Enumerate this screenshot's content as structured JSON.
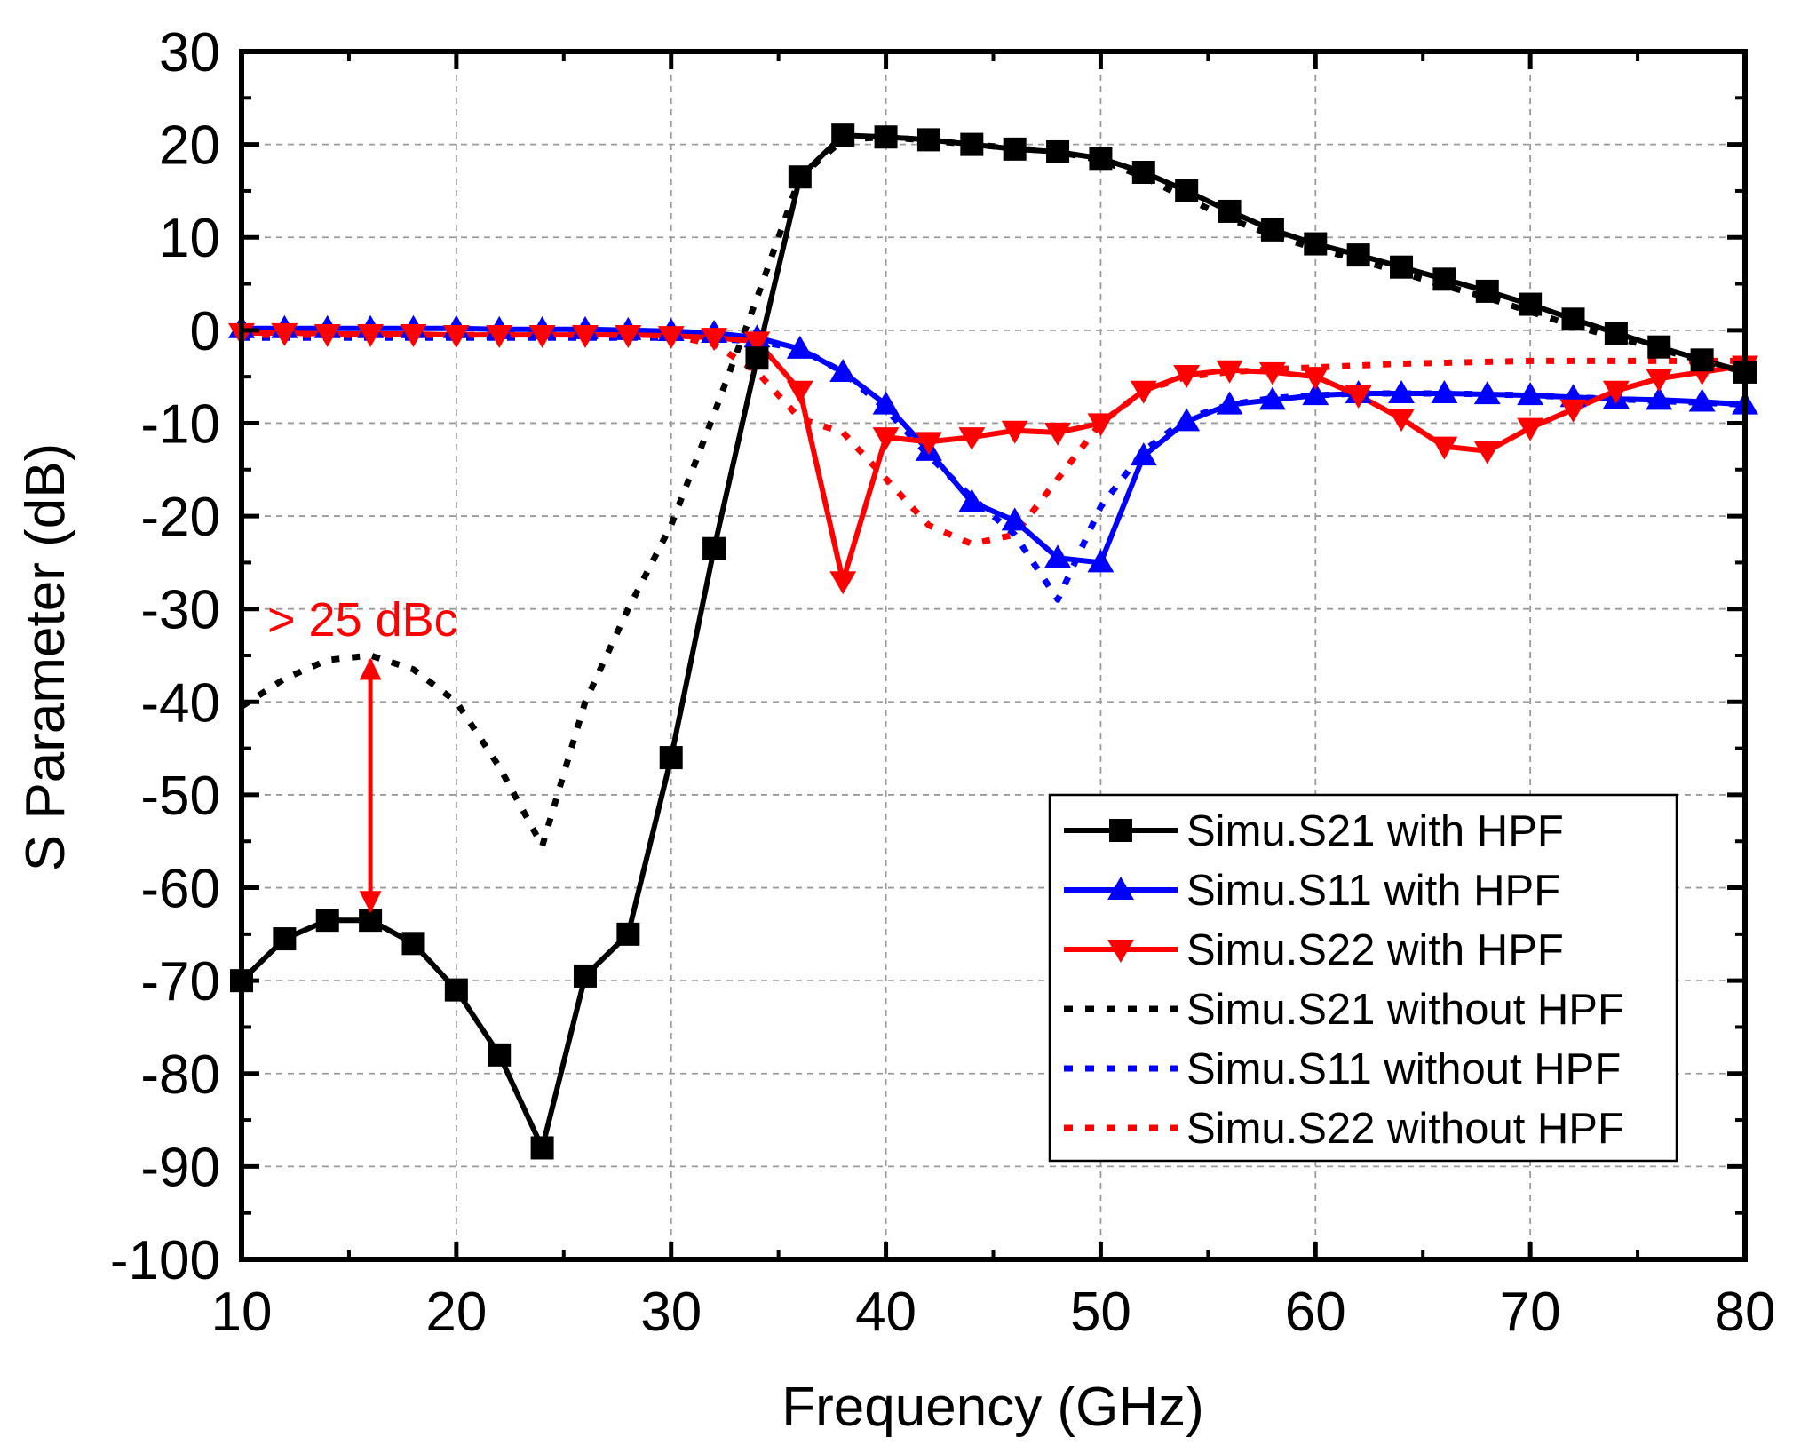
{
  "chart_data": {
    "type": "line",
    "title": "",
    "xlabel": "Frequency (GHz)",
    "ylabel": "S Parameter (dB)",
    "xlim": [
      10,
      80
    ],
    "ylim": [
      -100,
      30
    ],
    "xticks": [
      10,
      20,
      30,
      40,
      50,
      60,
      70,
      80
    ],
    "yticks": [
      30,
      20,
      10,
      0,
      -10,
      -20,
      -30,
      -40,
      -50,
      -60,
      -70,
      -80,
      -90,
      -100
    ],
    "grid": true,
    "legend_position": "bottom-right",
    "series": [
      {
        "name": "Simu.S21 with HPF",
        "color": "#000000",
        "style": "solid",
        "marker": "square",
        "x": [
          10,
          12,
          14,
          16,
          18,
          20,
          22,
          24,
          26,
          28,
          30,
          32,
          34,
          36,
          38,
          40,
          42,
          44,
          46,
          48,
          50,
          52,
          54,
          56,
          58,
          60,
          62,
          64,
          66,
          68,
          70,
          72,
          74,
          76,
          78,
          80
        ],
        "y": [
          -70,
          -65.5,
          -63.5,
          -63.5,
          -66,
          -71,
          -78,
          -88,
          -69.5,
          -65,
          -46,
          -23.5,
          -3,
          16.5,
          21,
          20.8,
          20.5,
          20,
          19.5,
          19.2,
          18.5,
          17,
          15,
          12.8,
          10.8,
          9.3,
          8.1,
          6.8,
          5.5,
          4.2,
          2.8,
          1.2,
          -0.3,
          -1.8,
          -3.2,
          -4.5
        ]
      },
      {
        "name": "Simu.S11 with HPF",
        "color": "#0000ff",
        "style": "solid",
        "marker": "triangle-up",
        "x": [
          10,
          12,
          14,
          16,
          18,
          20,
          22,
          24,
          26,
          28,
          30,
          32,
          34,
          36,
          38,
          40,
          42,
          44,
          46,
          48,
          50,
          52,
          54,
          56,
          58,
          60,
          62,
          64,
          66,
          68,
          70,
          72,
          74,
          76,
          78,
          80
        ],
        "y": [
          0.2,
          0.2,
          0.2,
          0.2,
          0.2,
          0.2,
          0.1,
          0.1,
          0.1,
          0,
          -0.1,
          -0.3,
          -0.8,
          -2,
          -4.5,
          -8,
          -13,
          -18.5,
          -20.5,
          -24.5,
          -25,
          -13.5,
          -9.8,
          -8,
          -7.5,
          -7,
          -6.8,
          -6.8,
          -6.8,
          -6.9,
          -7,
          -7.2,
          -7.4,
          -7.5,
          -7.7,
          -8
        ]
      },
      {
        "name": "Simu.S22 with HPF",
        "color": "#ff0000",
        "style": "solid",
        "marker": "triangle-down",
        "x": [
          10,
          12,
          14,
          16,
          18,
          20,
          22,
          24,
          26,
          28,
          30,
          32,
          34,
          36,
          38,
          40,
          42,
          44,
          46,
          48,
          50,
          52,
          54,
          56,
          58,
          60,
          62,
          64,
          66,
          68,
          70,
          72,
          74,
          76,
          78,
          80
        ],
        "y": [
          -0.3,
          -0.3,
          -0.4,
          -0.4,
          -0.4,
          -0.5,
          -0.5,
          -0.5,
          -0.5,
          -0.5,
          -0.6,
          -0.8,
          -1.2,
          -6.5,
          -27,
          -11.5,
          -12,
          -11.5,
          -10.8,
          -11,
          -10,
          -6.5,
          -4.8,
          -4.3,
          -4.5,
          -5,
          -7,
          -9.5,
          -12.5,
          -13,
          -10.5,
          -8.5,
          -6.5,
          -5.2,
          -4.5,
          -3.8
        ]
      },
      {
        "name": "Simu.S21 without HPF",
        "color": "#000000",
        "style": "dotted",
        "marker": "none",
        "x": [
          10,
          12,
          14,
          16,
          18,
          20,
          22,
          24,
          26,
          28,
          30,
          32,
          34,
          36,
          38,
          40,
          42,
          44,
          46,
          48,
          50,
          52,
          54,
          56,
          58,
          60,
          62,
          64,
          66,
          68,
          70,
          72,
          74,
          76,
          78,
          80
        ],
        "y": [
          -40.5,
          -37.5,
          -35.5,
          -35,
          -36.5,
          -40,
          -47,
          -55.5,
          -40,
          -30,
          -21,
          -9,
          3.5,
          16.5,
          20.5,
          20.8,
          20.4,
          20,
          19.6,
          19.2,
          18.3,
          16.5,
          14.2,
          12,
          10.2,
          8.8,
          7.6,
          6.2,
          4.8,
          3.5,
          2,
          0.5,
          -0.8,
          -2,
          -3.3,
          -4.5
        ]
      },
      {
        "name": "Simu.S11 without HPF",
        "color": "#0000ff",
        "style": "dotted",
        "marker": "none",
        "x": [
          10,
          12,
          14,
          16,
          18,
          20,
          22,
          24,
          26,
          28,
          30,
          32,
          34,
          36,
          38,
          40,
          42,
          44,
          46,
          48,
          50,
          52,
          54,
          56,
          58,
          60,
          62,
          64,
          66,
          68,
          70,
          72,
          74,
          76,
          78,
          80
        ],
        "y": [
          -0.8,
          -0.8,
          -0.8,
          -0.8,
          -0.8,
          -0.8,
          -0.8,
          -0.8,
          -0.8,
          -0.8,
          -0.8,
          -0.9,
          -1.2,
          -2,
          -4.5,
          -8.5,
          -13.5,
          -18,
          -22,
          -29,
          -19,
          -13,
          -9.5,
          -8,
          -7.3,
          -7,
          -6.8,
          -6.8,
          -6.8,
          -6.9,
          -7,
          -7.2,
          -7.4,
          -7.6,
          -7.8,
          -8
        ]
      },
      {
        "name": "Simu.S22 without HPF",
        "color": "#ff0000",
        "style": "dotted",
        "marker": "none",
        "x": [
          10,
          12,
          14,
          16,
          18,
          20,
          22,
          24,
          26,
          28,
          30,
          32,
          34,
          36,
          38,
          40,
          42,
          44,
          46,
          48,
          50,
          52,
          54,
          56,
          58,
          60,
          62,
          64,
          66,
          68,
          70,
          72,
          74,
          76,
          78,
          80
        ],
        "y": [
          -0.5,
          -0.5,
          -0.5,
          -0.5,
          -0.5,
          -0.5,
          -0.5,
          -0.5,
          -0.5,
          -0.5,
          -0.6,
          -1.5,
          -4.5,
          -9.5,
          -11,
          -16,
          -21,
          -23,
          -22,
          -16,
          -10,
          -6.5,
          -5,
          -4.5,
          -4.2,
          -4,
          -3.8,
          -3.6,
          -3.5,
          -3.4,
          -3.3,
          -3.3,
          -3.3,
          -3.3,
          -3.3,
          -3.3
        ]
      }
    ],
    "annotations": [
      {
        "text": "> 25 dBc",
        "color": "#ff0000",
        "arrow": {
          "x": 16,
          "y_from": -35.5,
          "y_to": -62.5
        },
        "text_anchor": {
          "x": 11.2,
          "y": -31
        }
      }
    ]
  }
}
